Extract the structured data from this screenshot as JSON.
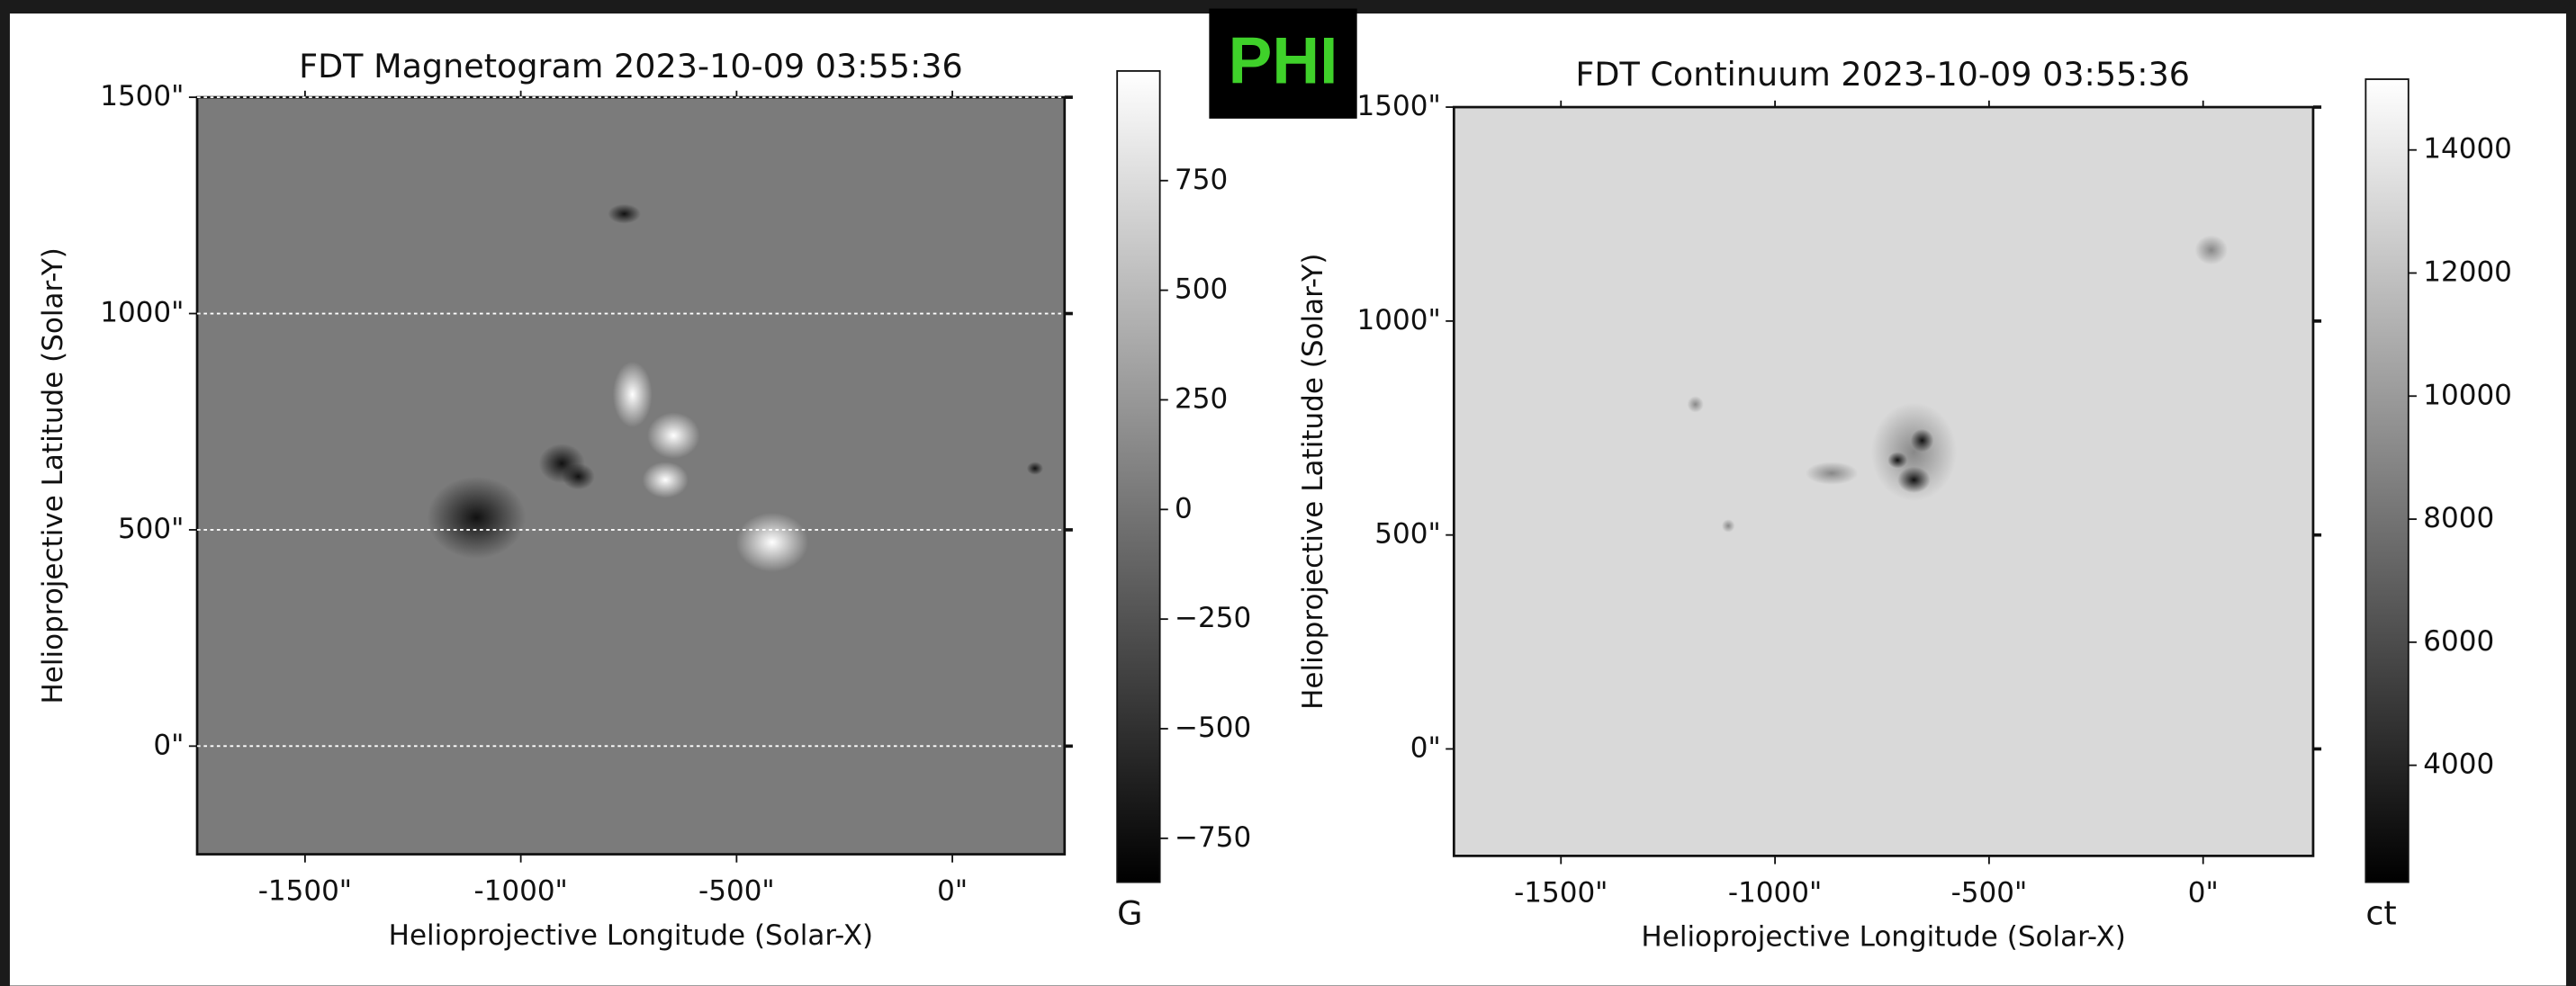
{
  "badge": "PHI",
  "chart_data": [
    {
      "type": "image",
      "title": "FDT Magnetogram 2023-10-09 03:55:36",
      "xlabel": "Helioprojective Longitude (Solar-X)",
      "ylabel": "Helioprojective Latitude (Solar-Y)",
      "xlim": [
        -1750,
        260
      ],
      "ylim": [
        -250,
        1500
      ],
      "xticks": [
        {
          "value": -1500,
          "label": "-1500\""
        },
        {
          "value": -1000,
          "label": "-1000\""
        },
        {
          "value": -500,
          "label": "-500\""
        },
        {
          "value": 0,
          "label": "0\""
        }
      ],
      "yticks": [
        {
          "value": 0,
          "label": "0\""
        },
        {
          "value": 500,
          "label": "500\""
        },
        {
          "value": 1000,
          "label": "1000\""
        },
        {
          "value": 1500,
          "label": "1500\""
        }
      ],
      "grid": true,
      "color": "#7b7b7b",
      "colorbar": {
        "label": "G",
        "lim": [
          -850,
          1000
        ],
        "ticks": [
          {
            "value": -750,
            "label": "−750"
          },
          {
            "value": -500,
            "label": "−500"
          },
          {
            "value": -250,
            "label": "−250"
          },
          0,
          250,
          500,
          750
        ]
      }
    },
    {
      "type": "image",
      "title": "FDT Continuum 2023-10-09 03:55:36",
      "xlabel": "Helioprojective Longitude (Solar-X)",
      "ylabel": "Helioprojective Latitude (Solar-Y)",
      "xlim": [
        -1750,
        257
      ],
      "ylim": [
        -250,
        1500
      ],
      "xticks": [
        {
          "value": -1500,
          "label": "-1500\""
        },
        {
          "value": -1000,
          "label": "-1000\""
        },
        {
          "value": -500,
          "label": "-500\""
        },
        {
          "value": 0,
          "label": "0\""
        }
      ],
      "yticks": [
        {
          "value": 0,
          "label": "0\""
        },
        {
          "value": 500,
          "label": "500\""
        },
        {
          "value": 1000,
          "label": "1000\""
        },
        {
          "value": 1500,
          "label": "1500\""
        }
      ],
      "grid": false,
      "color": "#d9d9d9",
      "colorbar": {
        "label": "ct",
        "lim": [
          2100,
          15150
        ],
        "ticks": [
          4000,
          6000,
          8000,
          10000,
          12000,
          14000
        ]
      }
    }
  ]
}
